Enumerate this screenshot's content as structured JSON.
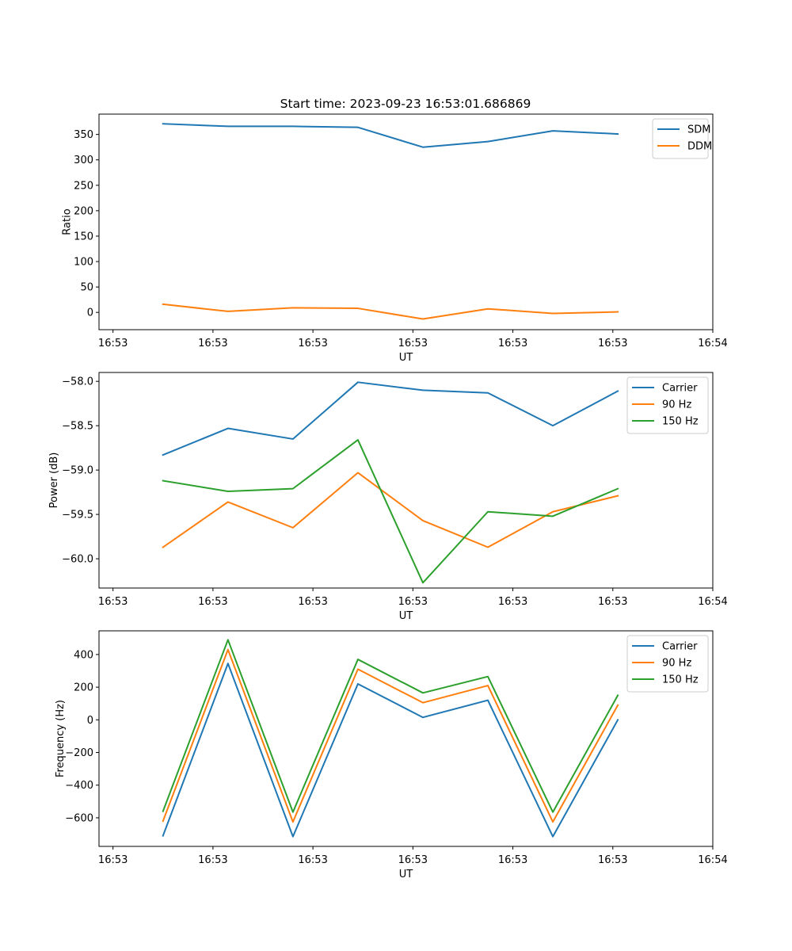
{
  "chart_data": {
    "title": "Start time: 2023-09-23 16:53:01.686869",
    "subplots": [
      {
        "type": "line",
        "xlabel": "UT",
        "ylabel": "Ratio",
        "x_ticks": [
          0,
          1,
          2,
          3,
          4,
          5,
          6
        ],
        "x_tick_labels": [
          "16:53",
          "16:53",
          "16:53",
          "16:53",
          "16:53",
          "16:53",
          "16:54"
        ],
        "xlim": [
          -0.14,
          6.0
        ],
        "ylim": [
          -34,
          390
        ],
        "y_ticks": [
          0,
          50,
          100,
          150,
          200,
          250,
          300,
          350
        ],
        "y_tick_labels": [
          "0",
          "50",
          "100",
          "150",
          "200",
          "250",
          "300",
          "350"
        ],
        "x": [
          0.5,
          1.15,
          1.8,
          2.45,
          3.1,
          3.75,
          4.4,
          5.05
        ],
        "legend_position": "top-right",
        "series": [
          {
            "name": "SDM",
            "color": "#1f77b4",
            "values": [
              371,
              366,
              366,
              364,
              325,
              336,
              357,
              351
            ]
          },
          {
            "name": "DDM",
            "color": "#ff7f0e",
            "values": [
              16,
              2,
              9,
              8,
              -13,
              7,
              -2,
              1
            ]
          }
        ]
      },
      {
        "type": "line",
        "xlabel": "UT",
        "ylabel": "Power (dB)",
        "x_ticks": [
          0,
          1,
          2,
          3,
          4,
          5,
          6
        ],
        "x_tick_labels": [
          "16:53",
          "16:53",
          "16:53",
          "16:53",
          "16:53",
          "16:53",
          "16:54"
        ],
        "xlim": [
          -0.14,
          6.0
        ],
        "ylim": [
          -60.33,
          -57.9
        ],
        "y_ticks": [
          -60.0,
          -59.5,
          -59.0,
          -58.5,
          -58.0
        ],
        "y_tick_labels": [
          "−60.0",
          "−59.5",
          "−59.0",
          "−58.5",
          "−58.0"
        ],
        "x": [
          0.5,
          1.15,
          1.8,
          2.45,
          3.1,
          3.75,
          4.4,
          5.05
        ],
        "legend_position": "top-right",
        "series": [
          {
            "name": "Carrier",
            "color": "#1f77b4",
            "values": [
              -58.83,
              -58.53,
              -58.65,
              -58.01,
              -58.1,
              -58.13,
              -58.5,
              -58.11
            ]
          },
          {
            "name": "90 Hz",
            "color": "#ff7f0e",
            "values": [
              -59.87,
              -59.36,
              -59.65,
              -59.03,
              -59.57,
              -59.87,
              -59.47,
              -59.29
            ]
          },
          {
            "name": "150 Hz",
            "color": "#2ca02c",
            "values": [
              -59.12,
              -59.24,
              -59.21,
              -58.66,
              -60.27,
              -59.47,
              -59.52,
              -59.21
            ]
          }
        ]
      },
      {
        "type": "line",
        "xlabel": "UT",
        "ylabel": "Frequency (Hz)",
        "x_ticks": [
          0,
          1,
          2,
          3,
          4,
          5,
          6
        ],
        "x_tick_labels": [
          "16:53",
          "16:53",
          "16:53",
          "16:53",
          "16:53",
          "16:53",
          "16:54"
        ],
        "xlim": [
          -0.14,
          6.0
        ],
        "ylim": [
          -775,
          545
        ],
        "y_ticks": [
          -600,
          -400,
          -200,
          0,
          200,
          400
        ],
        "y_tick_labels": [
          "−600",
          "−400",
          "−200",
          "0",
          "200",
          "400"
        ],
        "x": [
          0.5,
          1.15,
          1.8,
          2.45,
          3.1,
          3.75,
          4.4,
          5.05
        ],
        "legend_position": "top-right",
        "series": [
          {
            "name": "Carrier",
            "color": "#1f77b4",
            "values": [
              -710,
              345,
              -715,
              220,
              15,
              120,
              -715,
              0
            ]
          },
          {
            "name": "90 Hz",
            "color": "#ff7f0e",
            "values": [
              -620,
              430,
              -625,
              310,
              105,
              210,
              -625,
              90
            ]
          },
          {
            "name": "150 Hz",
            "color": "#2ca02c",
            "values": [
              -560,
              490,
              -565,
              370,
              165,
              265,
              -565,
              150
            ]
          }
        ]
      }
    ]
  }
}
